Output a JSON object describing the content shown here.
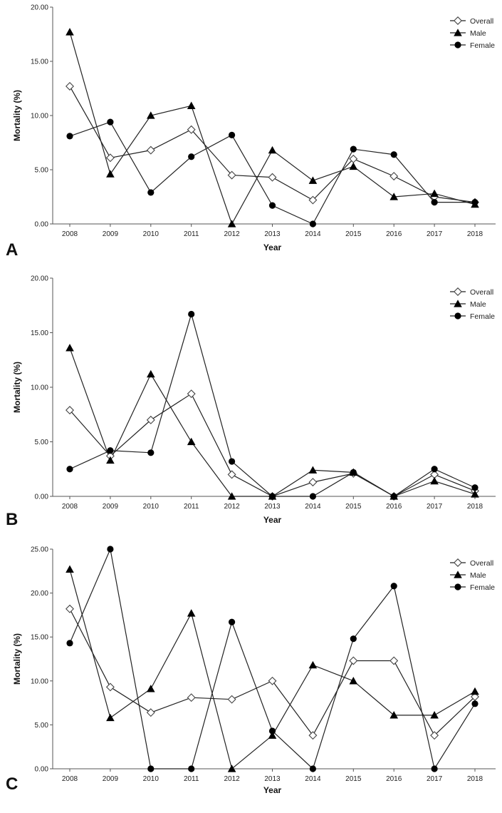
{
  "chart_data": [
    {
      "type": "line",
      "panel_label": "A",
      "xlabel": "Year",
      "ylabel": "Mortality (%)",
      "ylim": [
        0,
        20
      ],
      "y_ticks": [
        "0.00",
        "5.00",
        "10.00",
        "15.00",
        "20.00"
      ],
      "categories": [
        "2008",
        "2009",
        "2010",
        "2011",
        "2012",
        "2013",
        "2014",
        "2015",
        "2016",
        "2017",
        "2018"
      ],
      "legend_position": "top-right",
      "series": [
        {
          "name": "Overall",
          "marker": "diamond-open",
          "values": [
            12.7,
            6.1,
            6.8,
            8.7,
            4.5,
            4.3,
            2.2,
            6.0,
            4.4,
            2.5,
            2.0
          ]
        },
        {
          "name": "Male",
          "marker": "triangle",
          "values": [
            17.7,
            4.6,
            10.0,
            10.9,
            0.0,
            6.8,
            4.0,
            5.3,
            2.5,
            2.8,
            1.8
          ]
        },
        {
          "name": "Female",
          "marker": "circle",
          "values": [
            8.1,
            9.4,
            2.9,
            6.2,
            8.2,
            1.7,
            0.0,
            6.9,
            6.4,
            2.0,
            2.0
          ]
        }
      ]
    },
    {
      "type": "line",
      "panel_label": "B",
      "xlabel": "Year",
      "ylabel": "Mortality (%)",
      "ylim": [
        0,
        20
      ],
      "y_ticks": [
        "0.00",
        "5.00",
        "10.00",
        "15.00",
        "20.00"
      ],
      "categories": [
        "2008",
        "2009",
        "2010",
        "2011",
        "2012",
        "2013",
        "2014",
        "2015",
        "2016",
        "2017",
        "2018"
      ],
      "legend_position": "top-right",
      "series": [
        {
          "name": "Overall",
          "marker": "diamond-open",
          "values": [
            7.9,
            3.7,
            7.0,
            9.4,
            2.0,
            0.0,
            1.3,
            2.1,
            0.0,
            2.0,
            0.5
          ]
        },
        {
          "name": "Male",
          "marker": "triangle",
          "values": [
            13.6,
            3.3,
            11.2,
            5.0,
            0.0,
            0.0,
            2.4,
            2.2,
            0.0,
            1.4,
            0.2
          ]
        },
        {
          "name": "Female",
          "marker": "circle",
          "values": [
            2.5,
            4.2,
            4.0,
            16.7,
            3.2,
            0.0,
            0.0,
            2.2,
            0.0,
            2.5,
            0.8
          ]
        }
      ]
    },
    {
      "type": "line",
      "panel_label": "C",
      "xlabel": "Year",
      "ylabel": "Mortality (%)",
      "ylim": [
        0,
        25
      ],
      "y_ticks": [
        "0.00",
        "5.00",
        "10.00",
        "15.00",
        "20.00",
        "25.00"
      ],
      "categories": [
        "2008",
        "2009",
        "2010",
        "2011",
        "2012",
        "2013",
        "2014",
        "2015",
        "2016",
        "2017",
        "2018"
      ],
      "legend_position": "top-right",
      "series": [
        {
          "name": "Overall",
          "marker": "diamond-open",
          "values": [
            18.2,
            9.3,
            6.4,
            8.1,
            7.9,
            10.0,
            3.8,
            12.3,
            12.3,
            3.8,
            8.2
          ]
        },
        {
          "name": "Male",
          "marker": "triangle",
          "values": [
            22.7,
            5.8,
            9.1,
            17.7,
            0.0,
            3.8,
            11.8,
            10.0,
            6.1,
            6.1,
            8.8
          ]
        },
        {
          "name": "Female",
          "marker": "circle",
          "values": [
            14.3,
            25.0,
            0.0,
            0.0,
            16.7,
            4.3,
            0.0,
            14.8,
            20.8,
            0.0,
            7.4
          ]
        }
      ]
    }
  ]
}
